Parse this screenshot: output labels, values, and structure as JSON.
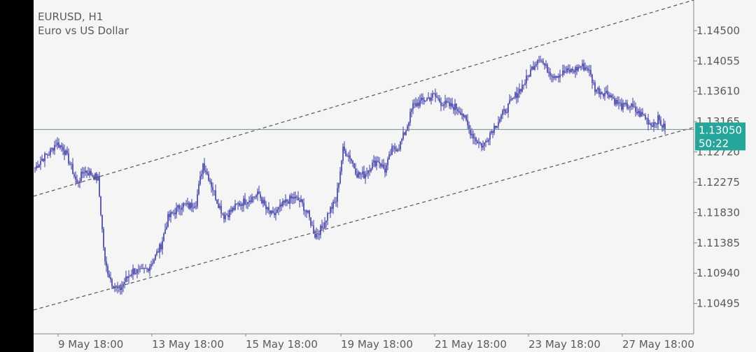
{
  "header": {
    "symbol": "EURUSD, H1",
    "description": "Euro vs US Dollar"
  },
  "current": {
    "price": "1.13050",
    "countdown": "50:22",
    "price_value": 1.1305,
    "label_color": "#26a69a"
  },
  "colors": {
    "background": "#f5f5f5",
    "candle": "#3a3aa8",
    "channel": "#555555",
    "price_line": "#6b8f8a",
    "axis": "#888888"
  },
  "chart_data": {
    "type": "candlestick",
    "title": "EURUSD, H1",
    "subtitle": "Euro vs US Dollar",
    "ylim": [
      1.1005,
      1.1495
    ],
    "y_ticks": [
      "1.14500",
      "1.14055",
      "1.13610",
      "1.13165",
      "1.12720",
      "1.12275",
      "1.11830",
      "1.11385",
      "1.10940",
      "1.10495"
    ],
    "y_tick_values": [
      1.145,
      1.14055,
      1.1361,
      1.13165,
      1.1272,
      1.12275,
      1.1183,
      1.11385,
      1.1094,
      1.10495
    ],
    "x_ticks": [
      "9 May 18:00",
      "13 May 18:00",
      "15 May 18:00",
      "19 May 18:00",
      "21 May 18:00",
      "23 May 18:00",
      "27 May 18:00"
    ],
    "grid": false,
    "series": [
      {
        "values": [
          1.1248,
          1.1262,
          1.127,
          1.1285,
          1.1278,
          1.1255,
          1.1225,
          1.1245,
          1.124,
          1.1232,
          1.1108,
          1.108,
          1.1068,
          1.1085,
          1.1098,
          1.1095,
          1.11,
          1.1115,
          1.1135,
          1.1175,
          1.1185,
          1.1195,
          1.1192,
          1.1198,
          1.1255,
          1.123,
          1.12,
          1.1178,
          1.1185,
          1.1195,
          1.12,
          1.1205,
          1.121,
          1.1188,
          1.1178,
          1.119,
          1.12,
          1.1205,
          1.1198,
          1.118,
          1.115,
          1.116,
          1.1185,
          1.12,
          1.1275,
          1.1265,
          1.124,
          1.1238,
          1.1252,
          1.126,
          1.1245,
          1.1275,
          1.128,
          1.1305,
          1.134,
          1.1345,
          1.135,
          1.1355,
          1.1345,
          1.134,
          1.1338,
          1.133,
          1.1305,
          1.129,
          1.128,
          1.13,
          1.1315,
          1.133,
          1.1345,
          1.136,
          1.1375,
          1.1395,
          1.1412,
          1.1395,
          1.1385,
          1.1386,
          1.139,
          1.1392,
          1.1398,
          1.1395,
          1.1365,
          1.136,
          1.1358,
          1.1345,
          1.1338,
          1.134,
          1.133,
          1.1325,
          1.1312,
          1.132,
          1.1305
        ]
      }
    ],
    "channel": {
      "upper": [
        [
          1.1207,
          1.1495
        ]
      ],
      "lower": [
        [
          1.104,
          1.1308
        ]
      ]
    },
    "current_price": 1.1305
  }
}
